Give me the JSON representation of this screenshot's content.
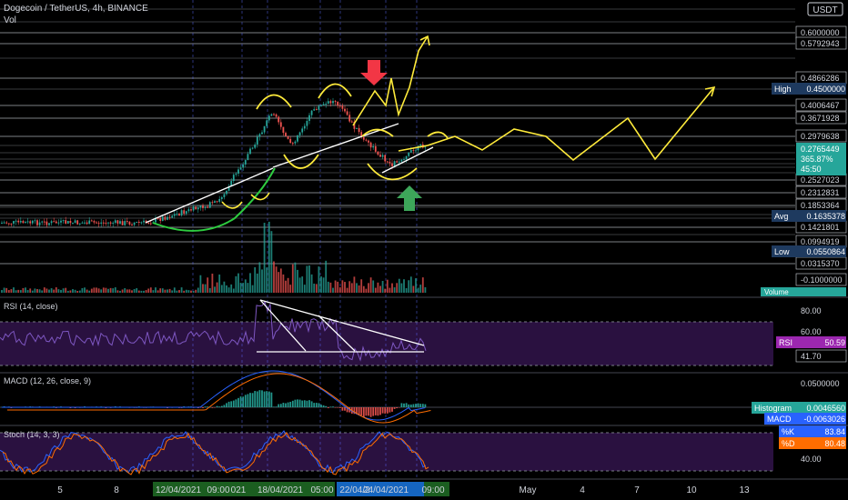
{
  "header": {
    "symbol": "Dogecoin / TetherUS, 4h, BINANCE",
    "vol_label": "Vol",
    "rsi_label": "RSI (14, close)",
    "macd_label": "MACD (12, 26, close, 9)",
    "stoch_label": "Stoch (14, 3, 3)",
    "currency": "USDT"
  },
  "colors": {
    "background": "#000000",
    "grid_line": "#ffffff",
    "candle_up": "#26a69a",
    "candle_down": "#ef5350",
    "drawing_yellow": "#ffeb3b",
    "drawing_white": "#ffffff",
    "drawing_green": "#2ecc40",
    "arrow_red": "#f23645",
    "arrow_green": "#3da65a",
    "rsi_line": "#7e57c2",
    "pane_purple": "#2a1140",
    "current_price_tag": "#26a69a",
    "label_tag": "#1e3a5f",
    "rsi_tag": "#9c27b0",
    "macd_tag": "#2962ff",
    "stoch_k_tag": "#2962ff",
    "stoch_d_tag": "#ff6d00",
    "time_highlight_green": "#1b5e20",
    "time_highlight_blue": "#1565c0"
  },
  "chart_data": {
    "type": "line",
    "title": "Dogecoin / TetherUS, 4h, BINANCE",
    "price_axis_labels": [
      "0.6000000",
      "0.5792943",
      "0.4866286",
      "0.4006467",
      "0.3671928",
      "0.2979638",
      "0.2527023",
      "0.2312831",
      "0.1853364",
      "0.1421801",
      "0.0994919",
      "0.0315370",
      "-0.1000000"
    ],
    "price_tags": [
      {
        "name": "High",
        "value": "0.4500000"
      },
      {
        "name": "Avg",
        "value": "0.1635378"
      },
      {
        "name": "Low",
        "value": "0.0550864"
      }
    ],
    "current_price": {
      "value": "0.2765449",
      "change": "365.87%",
      "countdown": "45:50"
    },
    "volume_tag": "Volume",
    "x_axis_labels": [
      "5",
      "8",
      "12/04/2021",
      "09:00",
      "021",
      "18/04/2021",
      "05:00",
      "22/04/2",
      "24/04/2021",
      "09:00",
      "May",
      "4",
      "7",
      "10",
      "13"
    ],
    "rsi": {
      "levels": [
        "80.00",
        "60.00"
      ],
      "value": "50.59",
      "marker": "41.70",
      "tag": "RSI"
    },
    "macd": {
      "axis": "0.0500000",
      "histogram": "0.0046560",
      "macd": "-0.0063026",
      "tags": [
        "Histogram",
        "MACD"
      ]
    },
    "stoch": {
      "k": "83.84",
      "d": "80.48",
      "axis": "40.00",
      "tags": [
        "%K",
        "%D"
      ]
    }
  }
}
